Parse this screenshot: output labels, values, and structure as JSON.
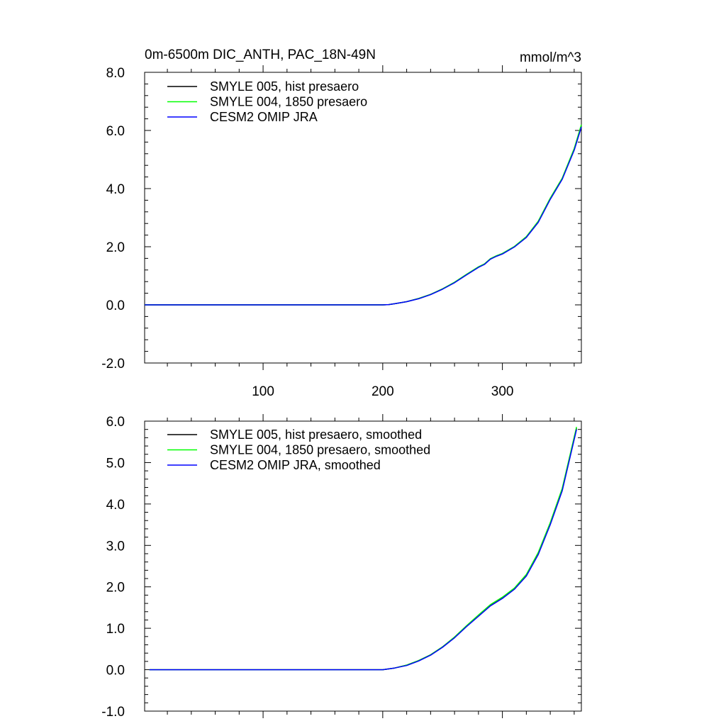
{
  "chart_data": [
    {
      "type": "line",
      "title": "0m-6500m DIC_ANTH, PAC_18N-49N",
      "units": "mmol/m^3",
      "xlim": [
        1,
        366
      ],
      "ylim": [
        -2.0,
        8.0
      ],
      "xticks": [
        100,
        200,
        300
      ],
      "xtick_labels": [
        "100",
        "200",
        "300"
      ],
      "yticks": [
        -2.0,
        0.0,
        2.0,
        4.0,
        6.0,
        8.0
      ],
      "ytick_labels": [
        "-2.0",
        "0.0",
        "2.0",
        "4.0",
        "6.0",
        "8.0"
      ],
      "legend_position": "top-left",
      "x": [
        1,
        50,
        100,
        150,
        200,
        205,
        210,
        220,
        230,
        240,
        250,
        260,
        270,
        280,
        285,
        290,
        295,
        300,
        310,
        320,
        330,
        340,
        350,
        360,
        366
      ],
      "series": [
        {
          "name": "SMYLE 005, hist presaero",
          "color": "#000000",
          "values": [
            0.0,
            0.0,
            0.0,
            0.0,
            0.0,
            0.01,
            0.04,
            0.11,
            0.22,
            0.36,
            0.55,
            0.77,
            1.04,
            1.3,
            1.4,
            1.58,
            1.68,
            1.76,
            2.0,
            2.33,
            2.86,
            3.65,
            4.34,
            5.35,
            6.18
          ]
        },
        {
          "name": "SMYLE 004, 1850 presaero",
          "color": "#00ff00",
          "values": [
            0.0,
            0.0,
            0.0,
            0.0,
            0.0,
            0.01,
            0.04,
            0.11,
            0.22,
            0.36,
            0.55,
            0.78,
            1.05,
            1.31,
            1.41,
            1.59,
            1.69,
            1.77,
            2.01,
            2.35,
            2.88,
            3.67,
            4.36,
            5.38,
            6.2
          ]
        },
        {
          "name": "CESM2 OMIP JRA",
          "color": "#0000ff",
          "values": [
            0.0,
            0.0,
            0.0,
            0.0,
            0.0,
            0.01,
            0.04,
            0.11,
            0.21,
            0.35,
            0.54,
            0.76,
            1.03,
            1.29,
            1.39,
            1.57,
            1.67,
            1.75,
            1.99,
            2.32,
            2.84,
            3.63,
            4.32,
            5.32,
            6.12
          ]
        }
      ]
    },
    {
      "type": "line",
      "title": "",
      "xlim": [
        1,
        366
      ],
      "ylim": [
        -1.0,
        6.0
      ],
      "xticks": [
        100,
        200,
        300
      ],
      "xtick_labels": [
        "",
        "",
        ""
      ],
      "yticks": [
        -1.0,
        0.0,
        1.0,
        2.0,
        3.0,
        4.0,
        5.0,
        6.0
      ],
      "ytick_labels": [
        "-1.0",
        "0.0",
        "1.0",
        "2.0",
        "3.0",
        "4.0",
        "5.0",
        "6.0"
      ],
      "legend_position": "top-left",
      "x": [
        5,
        50,
        100,
        150,
        200,
        210,
        220,
        230,
        240,
        250,
        260,
        270,
        280,
        290,
        300,
        310,
        320,
        330,
        340,
        350,
        362
      ],
      "series": [
        {
          "name": "SMYLE 005, hist presaero, smoothed",
          "color": "#000000",
          "values": [
            0.0,
            0.0,
            0.0,
            0.0,
            0.0,
            0.04,
            0.11,
            0.22,
            0.36,
            0.55,
            0.78,
            1.05,
            1.3,
            1.55,
            1.73,
            1.95,
            2.28,
            2.8,
            3.52,
            4.35,
            5.83
          ]
        },
        {
          "name": "SMYLE 004, 1850 presaero, smoothed",
          "color": "#00ff00",
          "values": [
            0.0,
            0.0,
            0.0,
            0.0,
            0.0,
            0.04,
            0.11,
            0.22,
            0.36,
            0.55,
            0.79,
            1.06,
            1.32,
            1.57,
            1.75,
            1.97,
            2.3,
            2.83,
            3.55,
            4.38,
            5.86
          ]
        },
        {
          "name": "CESM2 OMIP JRA, smoothed",
          "color": "#0000ff",
          "values": [
            0.0,
            0.0,
            0.0,
            0.0,
            0.0,
            0.04,
            0.1,
            0.21,
            0.35,
            0.54,
            0.77,
            1.04,
            1.29,
            1.54,
            1.72,
            1.94,
            2.26,
            2.78,
            3.5,
            4.32,
            5.8
          ]
        }
      ]
    }
  ]
}
